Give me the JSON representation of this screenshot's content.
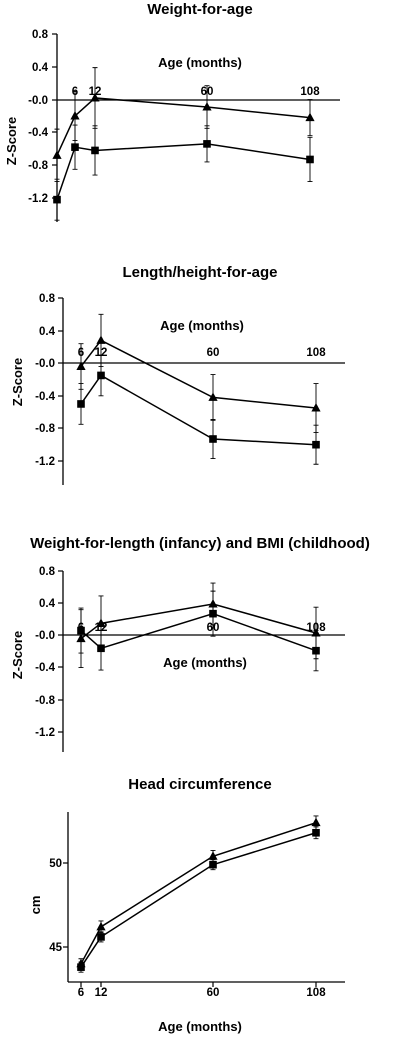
{
  "chart_data": [
    {
      "type": "line",
      "title": "Weight-for-age",
      "xlabel": "Age (months)",
      "ylabel": "Z-Score",
      "ylim": [
        -1.45,
        0.8
      ],
      "yticks": [
        "0.8",
        "0.4",
        "-0.0",
        "-0.4",
        "-0.8",
        "-1.2"
      ],
      "categories": [
        "6",
        "12",
        "60",
        "108"
      ],
      "x": [
        0,
        6,
        12,
        60,
        108
      ],
      "series": [
        {
          "marker": "triangle",
          "values": [
            -0.68,
            -0.2,
            0.02,
            -0.09,
            -0.22
          ],
          "err": [
            0.32,
            0.3,
            0.37,
            0.26,
            0.22
          ]
        },
        {
          "marker": "square",
          "values": [
            -1.22,
            -0.58,
            -0.62,
            -0.54,
            -0.73
          ],
          "err": [
            0.25,
            0.27,
            0.3,
            0.22,
            0.27
          ]
        }
      ]
    },
    {
      "type": "line",
      "title": "Length/height-for-age",
      "xlabel": "Age (months)",
      "ylabel": "Z-Score",
      "ylim": [
        -1.45,
        0.8
      ],
      "yticks": [
        "0.8",
        "0.4",
        "-0.0",
        "-0.4",
        "-0.8",
        "-1.2"
      ],
      "categories": [
        "6",
        "12",
        "60",
        "108"
      ],
      "x": [
        6,
        12,
        60,
        108
      ],
      "series": [
        {
          "marker": "triangle",
          "values": [
            -0.04,
            0.28,
            -0.42,
            -0.55
          ],
          "err": [
            0.28,
            0.32,
            0.28,
            0.3
          ]
        },
        {
          "marker": "square",
          "values": [
            -0.5,
            -0.15,
            -0.93,
            -1.0
          ],
          "err": [
            0.25,
            0.25,
            0.24,
            0.24
          ]
        }
      ]
    },
    {
      "type": "line",
      "title": "Weight-for-length (infancy) and BMI (childhood)",
      "xlabel": "Age (months)",
      "ylabel": "Z-Score",
      "ylim": [
        -1.45,
        0.8
      ],
      "yticks": [
        "0.8",
        "0.4",
        "-0.0",
        "-0.4",
        "-0.8",
        "-1.2"
      ],
      "categories": [
        "6",
        "12",
        "60",
        "108"
      ],
      "x": [
        6,
        12,
        60,
        108
      ],
      "series": [
        {
          "marker": "triangle",
          "values": [
            -0.04,
            0.15,
            0.39,
            0.03
          ],
          "err": [
            0.36,
            0.34,
            0.26,
            0.32
          ]
        },
        {
          "marker": "square",
          "values": [
            0.06,
            -0.16,
            0.27,
            -0.19
          ],
          "err": [
            0.28,
            0.27,
            0.28,
            0.25
          ]
        }
      ]
    },
    {
      "type": "line",
      "title": "Head circumference",
      "xlabel": "Age (months)",
      "ylabel": "cm",
      "ylim": [
        43.2,
        53.3
      ],
      "yticks": [
        "50",
        "45"
      ],
      "ytick_values": [
        50,
        45
      ],
      "categories": [
        "6",
        "12",
        "60",
        "108"
      ],
      "x": [
        6,
        12,
        60,
        108
      ],
      "series": [
        {
          "marker": "triangle",
          "values": [
            44.0,
            46.2,
            50.4,
            52.4
          ],
          "err": [
            0.3,
            0.35,
            0.35,
            0.4
          ]
        },
        {
          "marker": "square",
          "values": [
            43.8,
            45.6,
            49.9,
            51.8
          ],
          "err": [
            0.3,
            0.3,
            0.3,
            0.35
          ]
        }
      ]
    }
  ]
}
